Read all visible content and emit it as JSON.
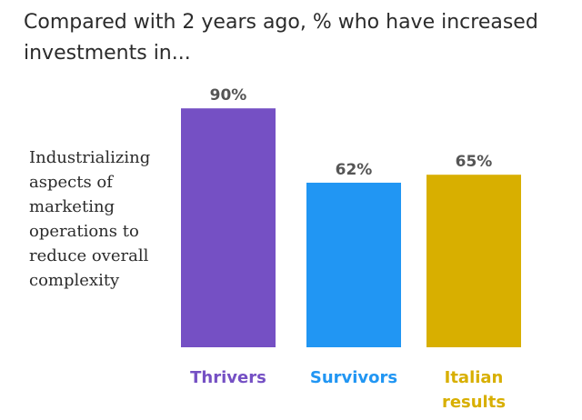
{
  "title_lines": [
    "Compared with 2 years ago, % who have increased",
    "investments in..."
  ],
  "row_label_lines": [
    "Industrializing",
    "aspects of",
    "marketing",
    "operations to",
    "reduce overall",
    "complexity"
  ],
  "chart_data": {
    "type": "bar",
    "title": "Compared with 2 years ago, % who have increased investments in...",
    "row_label": "Industrializing aspects of marketing operations to reduce overall complexity",
    "categories": [
      "Thrivers",
      "Survivors",
      "Italian results"
    ],
    "category_lines": [
      [
        "Thrivers"
      ],
      [
        "Survivors"
      ],
      [
        "Italian",
        "results"
      ]
    ],
    "values": [
      90,
      62,
      65
    ],
    "value_labels": [
      "90%",
      "62%",
      "65%"
    ],
    "colors": [
      "#7550c4",
      "#2196f3",
      "#d8af00"
    ],
    "ylim": [
      0,
      100
    ],
    "grid": false,
    "legend": "none"
  }
}
